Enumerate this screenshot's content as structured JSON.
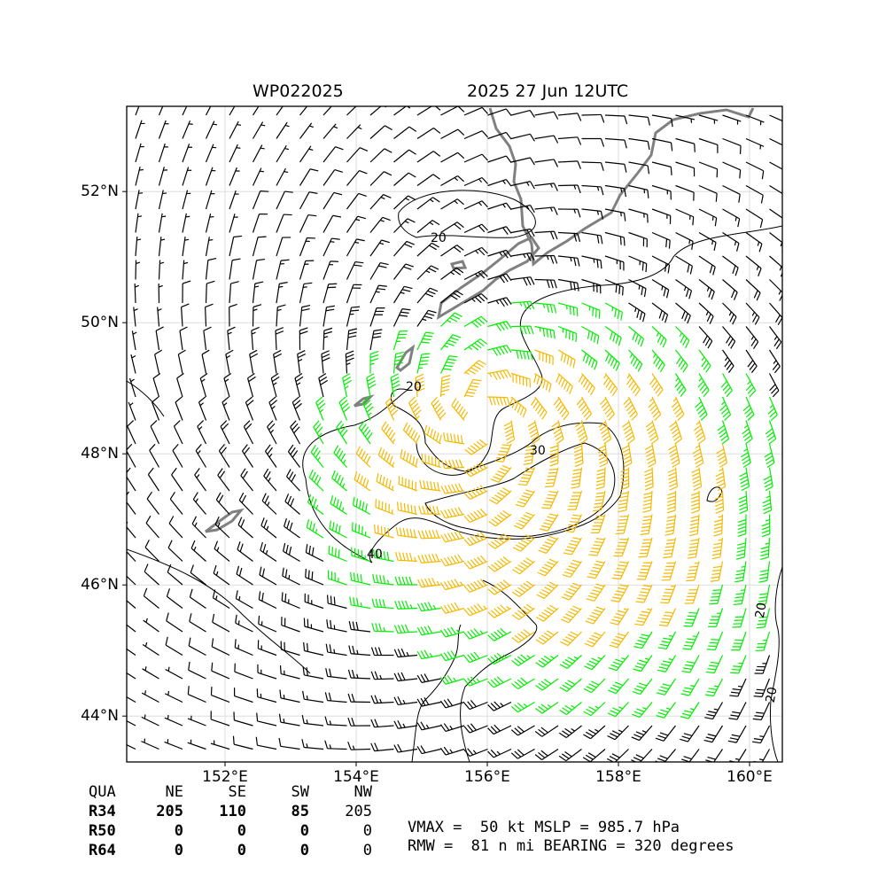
{
  "header": {
    "storm_id": "WP022025",
    "datetime": "2025 27 Jun 12UTC"
  },
  "map": {
    "lon_range": [
      150.5,
      160.5
    ],
    "lat_range": [
      43.3,
      53.3
    ],
    "lon_ticks": [
      "152°E",
      "154°E",
      "156°E",
      "158°E",
      "160°E"
    ],
    "lat_ticks": [
      "52°N",
      "50°N",
      "48°N",
      "46°N",
      "44°N"
    ],
    "contour_labels": [
      "20",
      "20",
      "30",
      "40",
      "20",
      "20"
    ],
    "colors": {
      "below_34kt": "#000000",
      "34_to_50kt": "#00ee00",
      "50_to_64kt": "#f5b800",
      "coastline": "#808080"
    },
    "storm_center": {
      "lon": 155.9,
      "lat": 48.6
    }
  },
  "wind_radii": {
    "header": [
      "QUA",
      "NE",
      "SE",
      "SW",
      "NW"
    ],
    "rows": [
      {
        "label": "R34",
        "values": [
          "205",
          "110",
          "85",
          "205"
        ]
      },
      {
        "label": "R50",
        "values": [
          "0",
          "0",
          "0",
          "0"
        ]
      },
      {
        "label": "R64",
        "values": [
          "0",
          "0",
          "0",
          "0"
        ]
      }
    ]
  },
  "stats": {
    "line1": "VMAX =  50 kt MSLP = 985.7 hPa",
    "line2": "RMW =  81 n mi BEARING = 320 degrees"
  }
}
